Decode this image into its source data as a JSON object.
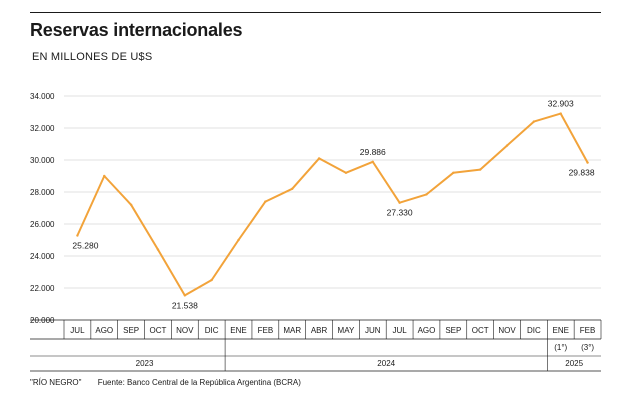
{
  "header": {
    "title": "Reservas internacionales",
    "subtitle": "EN MILLONES DE U$S"
  },
  "footer": {
    "credit": "\"RÍO NEGRO\"",
    "source": "Fuente: Banco Central de la República Argentina (BCRA)"
  },
  "colors": {
    "line": "#F2A33A",
    "grid": "#d9d9d9",
    "axis": "#1a1a1a"
  },
  "chart_data": {
    "type": "line",
    "categories": [
      "JUL",
      "AGO",
      "SEP",
      "OCT",
      "NOV",
      "DIC",
      "ENE",
      "FEB",
      "MAR",
      "ABR",
      "MAY",
      "JUN",
      "JUL",
      "AGO",
      "SEP",
      "OCT",
      "NOV",
      "DIC",
      "ENE",
      "FEB"
    ],
    "category_sublabels": [
      "",
      "",
      "",
      "",
      "",
      "",
      "",
      "",
      "",
      "",
      "",
      "",
      "",
      "",
      "",
      "",
      "",
      "",
      "(1°)",
      "(3°)"
    ],
    "years": [
      {
        "label": "2023",
        "span": 6
      },
      {
        "label": "2024",
        "span": 12
      },
      {
        "label": "2025",
        "span": 2
      }
    ],
    "series": [
      {
        "values": [
          25280,
          29000,
          27200,
          24400,
          21538,
          22500,
          25000,
          27400,
          28200,
          30100,
          29200,
          29886,
          27330,
          27850,
          29200,
          29400,
          30900,
          32400,
          32903,
          29838
        ]
      }
    ],
    "data_labels": [
      {
        "index": 0,
        "text": "25.280",
        "pos": "below"
      },
      {
        "index": 4,
        "text": "21.538",
        "pos": "below"
      },
      {
        "index": 11,
        "text": "29.886",
        "pos": "above"
      },
      {
        "index": 12,
        "text": "27.330",
        "pos": "below"
      },
      {
        "index": 18,
        "text": "32.903",
        "pos": "above"
      },
      {
        "index": 19,
        "text": "29.838",
        "pos": "below"
      }
    ],
    "ylim": [
      20000,
      34000
    ],
    "yticks": [
      20000,
      22000,
      24000,
      26000,
      28000,
      30000,
      32000,
      34000
    ],
    "ytick_labels": [
      "20.000",
      "22.000",
      "24.000",
      "26.000",
      "28.000",
      "30.000",
      "32.000",
      "34.000"
    ],
    "grid": true,
    "xlabel": "",
    "ylabel": ""
  }
}
